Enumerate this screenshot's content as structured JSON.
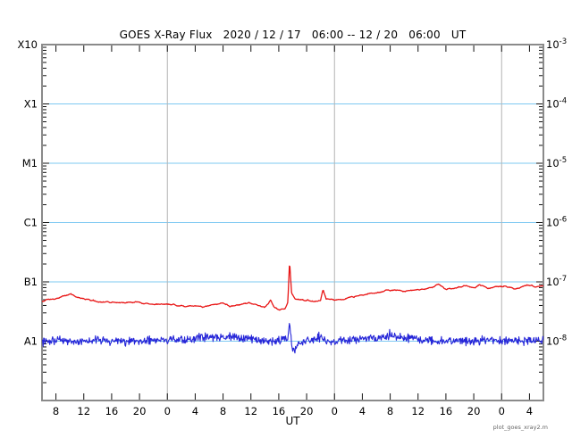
{
  "chart_data": {
    "type": "line",
    "title": "GOES X-Ray Flux   2020 / 12 / 17   06:00 -- 12 / 20   06:00   UT",
    "xlabel": "UT",
    "ylabel": "",
    "watermark": "plot_goes_xray2.m",
    "grid": "horizontal-decades-on",
    "legend": "none",
    "colors": {
      "background": "#ffffff",
      "frame": "#8a8a8a",
      "gridline": "#7ec9f2",
      "day_line": "#b4b4b4",
      "tick": "#111111",
      "text": "#000000"
    },
    "x_axis": {
      "total_hours": 72,
      "tick_labels": [
        {
          "t": 2,
          "label": "8"
        },
        {
          "t": 6,
          "label": "12"
        },
        {
          "t": 10,
          "label": "16"
        },
        {
          "t": 14,
          "label": "20"
        },
        {
          "t": 18,
          "label": "0"
        },
        {
          "t": 22,
          "label": "4"
        },
        {
          "t": 26,
          "label": "8"
        },
        {
          "t": 30,
          "label": "12"
        },
        {
          "t": 34,
          "label": "16"
        },
        {
          "t": 38,
          "label": "20"
        },
        {
          "t": 42,
          "label": "0"
        },
        {
          "t": 46,
          "label": "4"
        },
        {
          "t": 50,
          "label": "8"
        },
        {
          "t": 54,
          "label": "12"
        },
        {
          "t": 58,
          "label": "16"
        },
        {
          "t": 62,
          "label": "20"
        },
        {
          "t": 66,
          "label": "0"
        },
        {
          "t": 70,
          "label": "4"
        }
      ]
    },
    "day_boundaries_t": [
      18,
      42,
      66
    ],
    "y_axis": {
      "top_exponent": -3,
      "bottom_exponent": -9,
      "gridline_exponents": [
        -4,
        -5,
        -6,
        -7,
        -8
      ],
      "left_labels": [
        {
          "label": "X10",
          "exponent": -3
        },
        {
          "label": "X1",
          "exponent": -4
        },
        {
          "label": "M1",
          "exponent": -5
        },
        {
          "label": "C1",
          "exponent": -6
        },
        {
          "label": "B1",
          "exponent": -7
        },
        {
          "label": "A1",
          "exponent": -8
        }
      ],
      "right_labels": [
        {
          "base": "10",
          "exponent": "-3",
          "value_exponent": -3
        },
        {
          "base": "10",
          "exponent": "-4",
          "value_exponent": -4
        },
        {
          "base": "10",
          "exponent": "-5",
          "value_exponent": -5
        },
        {
          "base": "10",
          "exponent": "-6",
          "value_exponent": -6
        },
        {
          "base": "10",
          "exponent": "-7",
          "value_exponent": -7
        },
        {
          "base": "10",
          "exponent": "-8",
          "value_exponent": -8
        }
      ]
    },
    "series": [
      {
        "id": "xray-long-red",
        "color": "#e81414",
        "noise_decades": 0.013,
        "noise_mode": "smooth",
        "seed": 7,
        "points": [
          [
            0,
            4.8e-08
          ],
          [
            1,
            5e-08
          ],
          [
            2,
            5.2e-08
          ],
          [
            3,
            5.7e-08
          ],
          [
            4,
            6.3e-08
          ],
          [
            5,
            5.6e-08
          ],
          [
            6,
            5.2e-08
          ],
          [
            7,
            4.9e-08
          ],
          [
            8,
            4.7e-08
          ],
          [
            10,
            4.5e-08
          ],
          [
            12,
            4.35e-08
          ],
          [
            13.5,
            4.7e-08
          ],
          [
            15,
            4.3e-08
          ],
          [
            16.5,
            4.1e-08
          ],
          [
            18,
            4.3e-08
          ],
          [
            19.5,
            4e-08
          ],
          [
            21,
            3.9e-08
          ],
          [
            23,
            3.8e-08
          ],
          [
            24.5,
            4e-08
          ],
          [
            26,
            4.3e-08
          ],
          [
            27,
            3.9e-08
          ],
          [
            28.5,
            4.1e-08
          ],
          [
            29.8,
            4.4e-08
          ],
          [
            31,
            4e-08
          ],
          [
            32,
            3.8e-08
          ],
          [
            32.8,
            4.9e-08
          ],
          [
            33.3,
            3.7e-08
          ],
          [
            34.2,
            3.4e-08
          ],
          [
            34.9,
            3.5e-08
          ],
          [
            35.3,
            4.4e-08
          ],
          [
            35.55,
            2.2e-07
          ],
          [
            35.85,
            6.3e-08
          ],
          [
            36.3,
            5.1e-08
          ],
          [
            37.5,
            4.9e-08
          ],
          [
            39,
            4.7e-08
          ],
          [
            40,
            4.9e-08
          ],
          [
            40.35,
            7.3e-08
          ],
          [
            40.8,
            5.1e-08
          ],
          [
            42,
            4.9e-08
          ],
          [
            43,
            5e-08
          ],
          [
            45,
            5.7e-08
          ],
          [
            47,
            6.4e-08
          ],
          [
            49,
            7e-08
          ],
          [
            50.5,
            7.4e-08
          ],
          [
            52,
            6.9e-08
          ],
          [
            54,
            7.3e-08
          ],
          [
            55.5,
            7.8e-08
          ],
          [
            56.9,
            9e-08
          ],
          [
            58,
            7.5e-08
          ],
          [
            59.5,
            7.9e-08
          ],
          [
            61,
            8.6e-08
          ],
          [
            62,
            7.9e-08
          ],
          [
            62.9,
            8.8e-08
          ],
          [
            64,
            7.7e-08
          ],
          [
            65.5,
            8.3e-08
          ],
          [
            66.5,
            8.5e-08
          ],
          [
            67.8,
            7.6e-08
          ],
          [
            69,
            8.3e-08
          ],
          [
            70.3,
            8.9e-08
          ],
          [
            71,
            8.1e-08
          ],
          [
            72,
            8.4e-08
          ]
        ]
      },
      {
        "id": "xray-short-blue",
        "color": "#2626d8",
        "noise_decades": 0.05,
        "noise_mode": "jitter",
        "seed": 42,
        "points": [
          [
            0,
            1.05e-08
          ],
          [
            4,
            1e-08
          ],
          [
            8,
            1e-08
          ],
          [
            12,
            1e-08
          ],
          [
            16,
            1.05e-08
          ],
          [
            20,
            1.05e-08
          ],
          [
            23,
            1.15e-08
          ],
          [
            26,
            1.2e-08
          ],
          [
            29,
            1.15e-08
          ],
          [
            31,
            1.05e-08
          ],
          [
            33,
            1e-08
          ],
          [
            35.2,
            1.05e-08
          ],
          [
            35.55,
            2.1e-08
          ],
          [
            35.85,
            8.5e-09
          ],
          [
            36.3,
            6.8e-09
          ],
          [
            37,
            9.5e-09
          ],
          [
            38,
            1e-08
          ],
          [
            40.2,
            1.15e-08
          ],
          [
            41,
            1e-08
          ],
          [
            43,
            1e-08
          ],
          [
            46,
            1.1e-08
          ],
          [
            49,
            1.2e-08
          ],
          [
            52,
            1.15e-08
          ],
          [
            55,
            1.05e-08
          ],
          [
            58,
            1e-08
          ],
          [
            61,
            1e-08
          ],
          [
            64,
            1.05e-08
          ],
          [
            67,
            1e-08
          ],
          [
            70,
            1e-08
          ],
          [
            72,
            1e-08
          ]
        ]
      }
    ]
  }
}
